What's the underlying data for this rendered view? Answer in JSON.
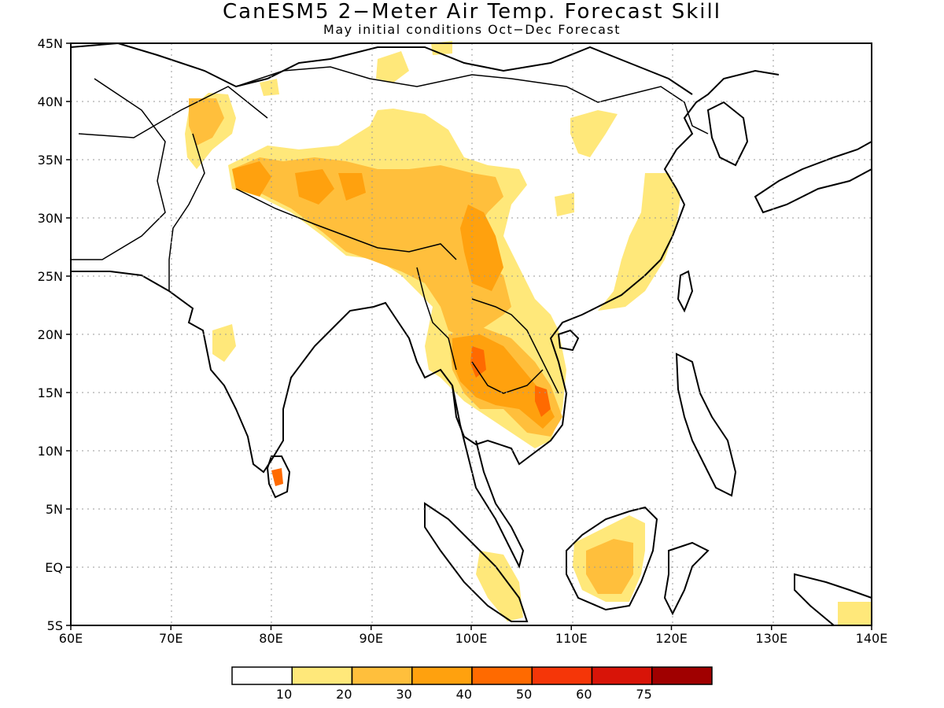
{
  "title": "CanESM5 2−Meter Air Temp. Forecast Skill",
  "subtitle": "May initial conditions  Oct−Dec Forecast",
  "map": {
    "lon_range": [
      60,
      140
    ],
    "lat_range": [
      -5,
      45
    ],
    "lon_ticks": [
      "60E",
      "70E",
      "80E",
      "90E",
      "100E",
      "110E",
      "120E",
      "130E",
      "140E"
    ],
    "lat_ticks": [
      "5S",
      "EQ",
      "5N",
      "10N",
      "15N",
      "20N",
      "25N",
      "30N",
      "35N",
      "40N",
      "45N"
    ],
    "grid": "dotted",
    "projection": "lat-lon"
  },
  "colorbar": {
    "labels": [
      "10",
      "20",
      "30",
      "40",
      "50",
      "60",
      "75"
    ],
    "colors": [
      "#ffffff",
      "#ffe87a",
      "#ffbf3c",
      "#ffa10e",
      "#ff6a00",
      "#f53608",
      "#d81408",
      "#a00000"
    ]
  }
}
